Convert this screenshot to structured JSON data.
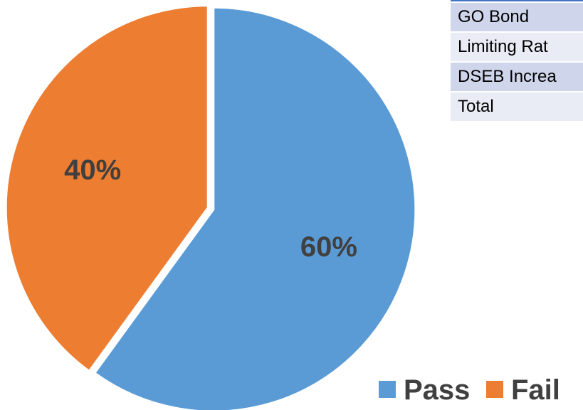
{
  "chart_data": {
    "type": "pie",
    "categories": [
      "Pass",
      "Fail"
    ],
    "values": [
      60,
      40
    ],
    "data_labels": [
      "60%",
      "40%"
    ],
    "colors": [
      "#5b9bd5",
      "#ed7d31"
    ],
    "legend_position": "bottom-right",
    "title": ""
  },
  "table": {
    "rows": [
      "GO Bond",
      "Limiting Rat",
      "DSEB Increa",
      "Total"
    ]
  }
}
